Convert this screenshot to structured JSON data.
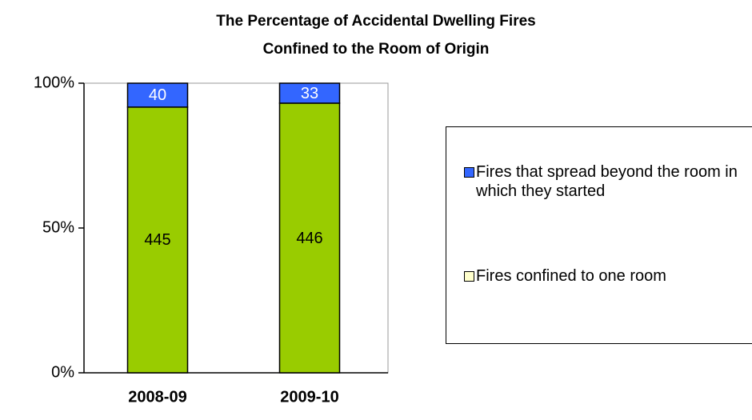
{
  "chart_data": {
    "type": "bar",
    "stacking": "percent",
    "title": [
      "The Percentage of Accidental Dwelling Fires",
      "Confined to the Room of Origin"
    ],
    "categories": [
      "2008-09",
      "2009-10"
    ],
    "series": [
      {
        "name": "Fires confined to one room",
        "color": "#99cc00",
        "legend_color": "#ffffcc",
        "label_color": "#000000",
        "values": [
          445,
          446
        ]
      },
      {
        "name": "Fires that spread beyond the room in which they started",
        "color": "#3366ff",
        "legend_color": "#3366ff",
        "label_color": "#ffffff",
        "values": [
          40,
          33
        ]
      }
    ],
    "ylim": [
      0,
      100
    ],
    "yticks": [
      {
        "value": 0,
        "label": "0%"
      },
      {
        "value": 50,
        "label": "50%"
      },
      {
        "value": 100,
        "label": "100%"
      }
    ],
    "legend": "right"
  }
}
